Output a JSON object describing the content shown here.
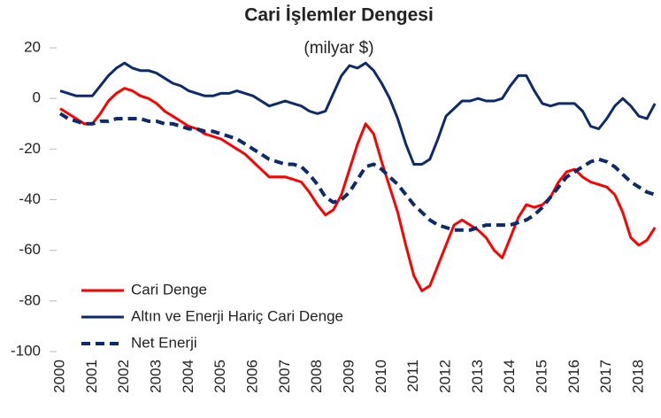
{
  "chart_data": {
    "type": "line",
    "title": "Cari İşlemler Dengesi",
    "subtitle": "(milyar $)",
    "x": [
      2000,
      2000.25,
      2000.5,
      2000.75,
      2001,
      2001.25,
      2001.5,
      2001.75,
      2002,
      2002.25,
      2002.5,
      2002.75,
      2003,
      2003.25,
      2003.5,
      2003.75,
      2004,
      2004.25,
      2004.5,
      2004.75,
      2005,
      2005.25,
      2005.5,
      2005.75,
      2006,
      2006.25,
      2006.5,
      2006.75,
      2007,
      2007.25,
      2007.5,
      2007.75,
      2008,
      2008.25,
      2008.5,
      2008.75,
      2009,
      2009.25,
      2009.5,
      2009.75,
      2010,
      2010.25,
      2010.5,
      2010.75,
      2011,
      2011.25,
      2011.5,
      2011.75,
      2012,
      2012.25,
      2012.5,
      2012.75,
      2013,
      2013.25,
      2013.5,
      2013.75,
      2014,
      2014.25,
      2014.5,
      2014.75,
      2015,
      2015.25,
      2015.5,
      2015.75,
      2016,
      2016.25,
      2016.5,
      2016.75,
      2017,
      2017.25,
      2017.5,
      2017.75,
      2018,
      2018.25,
      2018.5
    ],
    "series": [
      {
        "name": "Cari Denge",
        "color": "#ff0000",
        "dash": false,
        "values": [
          -4,
          -6,
          -8,
          -10,
          -10,
          -6,
          -1,
          2,
          4,
          3,
          1,
          0,
          -2,
          -5,
          -7,
          -9,
          -11,
          -12,
          -14,
          -15,
          -16,
          -18,
          -20,
          -22,
          -25,
          -28,
          -31,
          -31,
          -31,
          -32,
          -33,
          -37,
          -42,
          -46,
          -44,
          -38,
          -28,
          -18,
          -10,
          -14,
          -25,
          -35,
          -45,
          -58,
          -70,
          -76,
          -74,
          -66,
          -58,
          -50,
          -48,
          -50,
          -52,
          -55,
          -60,
          -63,
          -55,
          -47,
          -42,
          -43,
          -42,
          -39,
          -33,
          -29,
          -28,
          -31,
          -33,
          -34,
          -35,
          -38,
          -45,
          -55,
          -58,
          -56,
          -51
        ]
      },
      {
        "name": "Altın ve Enerji Hariç Cari Denge",
        "color": "#0d2a6b",
        "dash": false,
        "values": [
          3,
          2,
          1,
          1,
          1,
          5,
          9,
          12,
          14,
          12,
          11,
          11,
          10,
          8,
          6,
          5,
          3,
          2,
          1,
          1,
          2,
          2,
          3,
          2,
          1,
          -1,
          -3,
          -2,
          -1,
          -2,
          -3,
          -5,
          -6,
          -5,
          2,
          9,
          13,
          12,
          14,
          11,
          6,
          0,
          -8,
          -18,
          -26,
          -26,
          -24,
          -16,
          -7,
          -4,
          -1,
          -1,
          0,
          -1,
          -1,
          0,
          5,
          9,
          9,
          3,
          -2,
          -3,
          -2,
          -2,
          -2,
          -5,
          -11,
          -12,
          -8,
          -3,
          0,
          -3,
          -7,
          -8,
          -2
        ]
      },
      {
        "name": "Net Enerji",
        "color": "#0d2a6b",
        "dash": true,
        "values": [
          -6,
          -8,
          -9,
          -10,
          -10,
          -9,
          -9,
          -8,
          -8,
          -8,
          -8,
          -9,
          -9,
          -10,
          -10,
          -11,
          -12,
          -12,
          -13,
          -13,
          -14,
          -15,
          -16,
          -18,
          -20,
          -22,
          -24,
          -25,
          -26,
          -26,
          -27,
          -30,
          -34,
          -39,
          -41,
          -40,
          -37,
          -32,
          -27,
          -26,
          -28,
          -31,
          -34,
          -38,
          -42,
          -45,
          -48,
          -50,
          -51,
          -52,
          -52,
          -52,
          -51,
          -50,
          -50,
          -50,
          -50,
          -49,
          -48,
          -46,
          -43,
          -39,
          -35,
          -31,
          -29,
          -27,
          -25,
          -24,
          -25,
          -27,
          -30,
          -33,
          -35,
          -37,
          -38
        ]
      }
    ],
    "xlim": [
      2000,
      2018.6
    ],
    "xticks": [
      2000,
      2001,
      2002,
      2003,
      2004,
      2005,
      2006,
      2007,
      2008,
      2009,
      2010,
      2011,
      2012,
      2013,
      2014,
      2015,
      2016,
      2017,
      2018
    ],
    "ylim": [
      -100,
      20
    ],
    "yticks": [
      -100,
      -80,
      -60,
      -40,
      -20,
      0,
      20
    ],
    "grid": false,
    "legend": "lower left"
  }
}
